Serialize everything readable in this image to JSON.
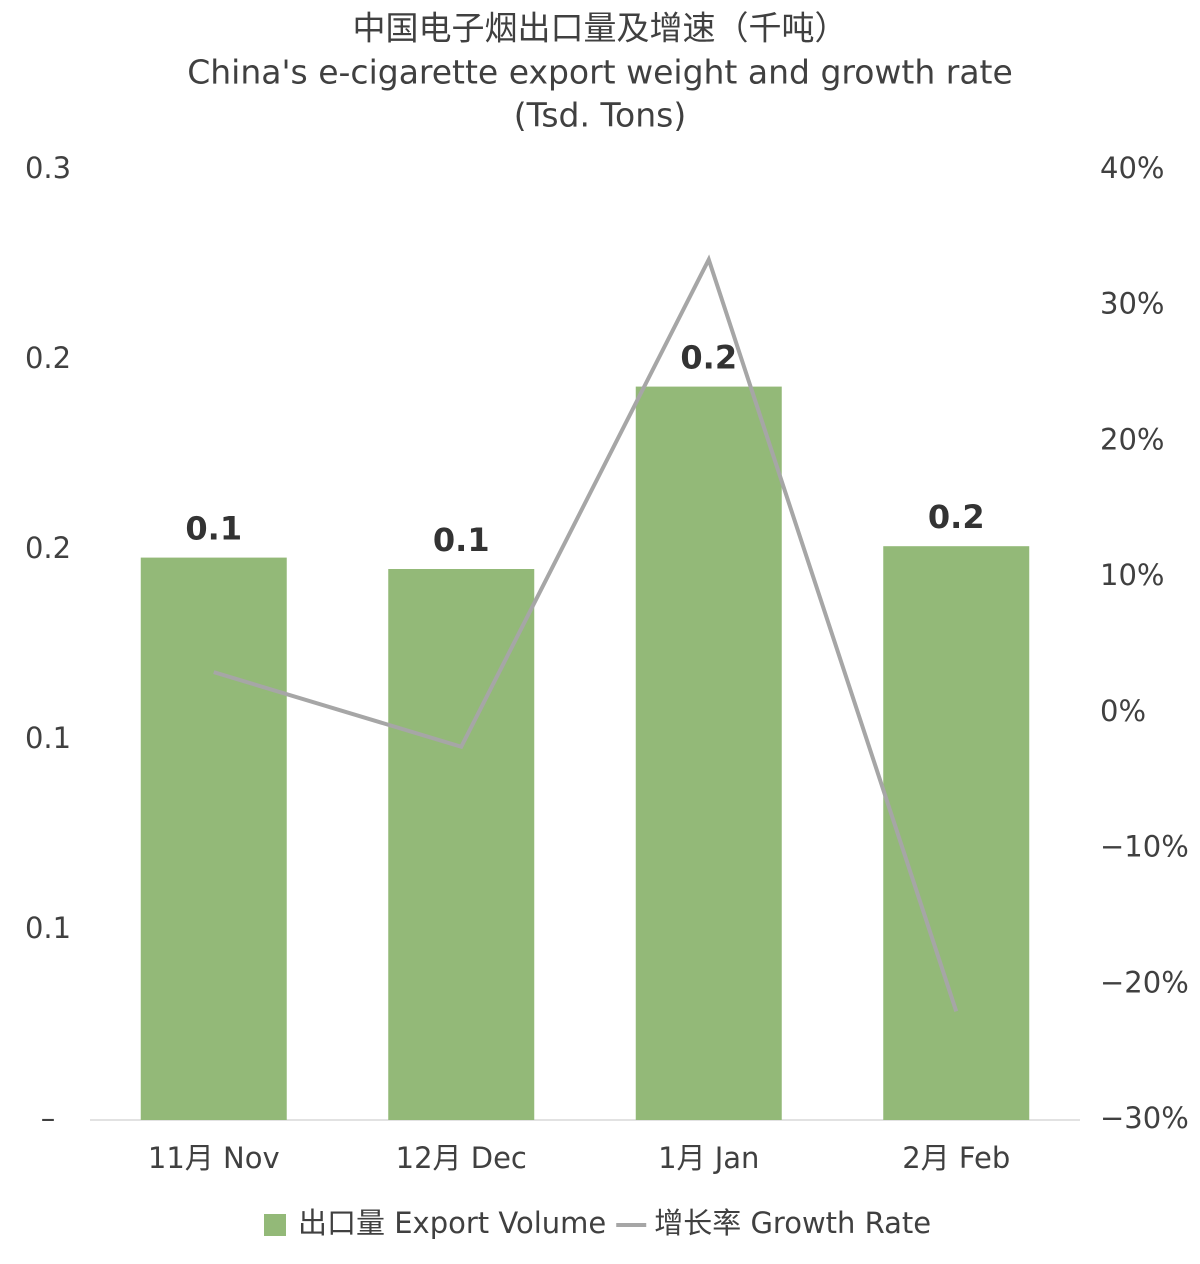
{
  "chart_data": {
    "type": "bar",
    "title": "中国电子烟出口量及增速（千吨）",
    "subtitle": "China's e-cigarette export weight and growth rate",
    "unit_note": "(Tsd. Tons)",
    "categories": [
      "11月 Nov",
      "12月 Dec",
      "1月 Jan",
      "2月 Feb"
    ],
    "series": [
      {
        "name": "出口量 Export Volume",
        "color": "#93b978",
        "type": "bar",
        "values": [
          0.148,
          0.145,
          0.193,
          0.151
        ],
        "value_labels": [
          "0.1",
          "0.1",
          "0.2",
          "0.2"
        ]
      },
      {
        "name": "增长率 Growth Rate",
        "color": "#a6a6a6",
        "type": "line",
        "axis": "y2",
        "values": [
          3.0,
          -2.5,
          33.4,
          -22.0
        ]
      }
    ],
    "ylim": [
      0,
      0.25
    ],
    "yticks": [
      {
        "value": 0,
        "label": "–"
      },
      {
        "value": 0.05,
        "label": "0.1"
      },
      {
        "value": 0.1,
        "label": "0.1"
      },
      {
        "value": 0.15,
        "label": "0.2"
      },
      {
        "value": 0.2,
        "label": "0.2"
      },
      {
        "value": 0.25,
        "label": "0.3"
      }
    ],
    "y2lim": [
      -30,
      40
    ],
    "y2ticks": [
      {
        "value": -30,
        "label": "−30%"
      },
      {
        "value": -20,
        "label": "−20%"
      },
      {
        "value": -10,
        "label": "−10%"
      },
      {
        "value": 0,
        "label": "0%"
      },
      {
        "value": 10,
        "label": "10%"
      },
      {
        "value": 20,
        "label": "20%"
      },
      {
        "value": 30,
        "label": "30%"
      },
      {
        "value": 40,
        "label": "40%"
      }
    ],
    "legend": "bottom"
  }
}
